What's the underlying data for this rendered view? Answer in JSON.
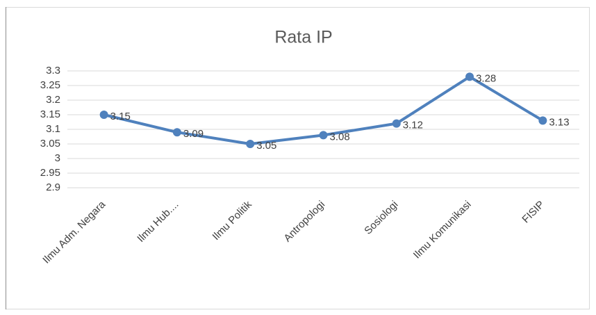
{
  "chart_data": {
    "type": "line",
    "title": "Rata IP",
    "categories": [
      "Ilmu Adm. Negara",
      "Ilmu Hub....",
      "Ilmu Politik",
      "Antropologi",
      "Sosiologi",
      "Ilmu Komunikasi",
      "FISIP"
    ],
    "series": [
      {
        "name": "Rata IP",
        "color": "#4f81bd",
        "values": [
          3.15,
          3.09,
          3.05,
          3.08,
          3.12,
          3.28,
          3.13
        ]
      }
    ],
    "ylim": [
      2.9,
      3.3
    ],
    "yticks": [
      2.9,
      2.95,
      3,
      3.05,
      3.1,
      3.15,
      3.2,
      3.25,
      3.3
    ],
    "grid": true,
    "data_labels": true,
    "legend": false
  }
}
